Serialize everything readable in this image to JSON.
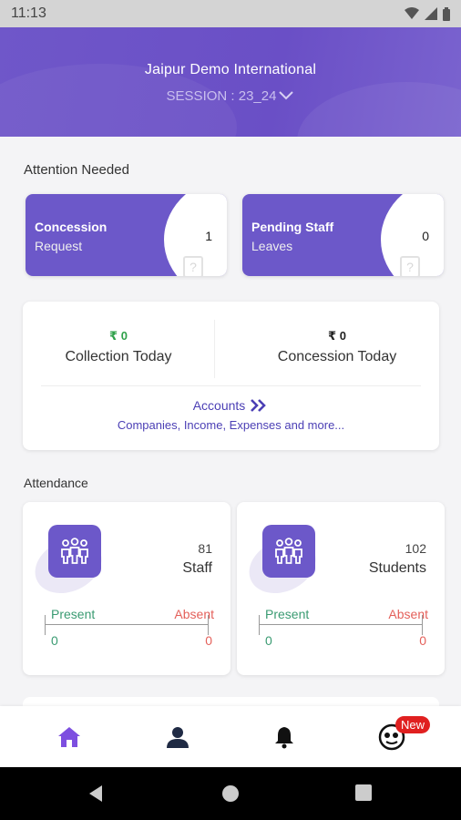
{
  "status_bar": {
    "time": "11:13"
  },
  "header": {
    "school_name": "Jaipur Demo International",
    "session": "SESSION : 23_24"
  },
  "attention": {
    "title": "Attention Needed",
    "cards": [
      {
        "line1": "Concession",
        "line2": "Request",
        "count": "1"
      },
      {
        "line1": "Pending Staff",
        "line2": "Leaves",
        "count": "0"
      }
    ]
  },
  "accounts": {
    "collection_amount": "₹ 0",
    "collection_label": "Collection Today",
    "concession_amount": "₹ 0",
    "concession_label": "Concession Today",
    "link_label": "Accounts",
    "link_sub": "Companies, Income, Expenses and more..."
  },
  "attendance": {
    "title": "Attendance",
    "cards": [
      {
        "count": "81",
        "name": "Staff",
        "present_label": "Present",
        "absent_label": "Absent",
        "present": "0",
        "absent": "0"
      },
      {
        "count": "102",
        "name": "Students",
        "present_label": "Present",
        "absent_label": "Absent",
        "present": "0",
        "absent": "0"
      }
    ]
  },
  "bottom_nav": {
    "items": [
      {
        "icon": "home-icon"
      },
      {
        "icon": "profile-icon"
      },
      {
        "icon": "bell-icon"
      },
      {
        "icon": "chatbot-icon"
      }
    ],
    "badge": "New"
  },
  "colors": {
    "primary": "#6c58c9",
    "present": "#3a9b72",
    "absent": "#e4605a",
    "collection": "#2fa14a",
    "link": "#4b3fb5"
  }
}
